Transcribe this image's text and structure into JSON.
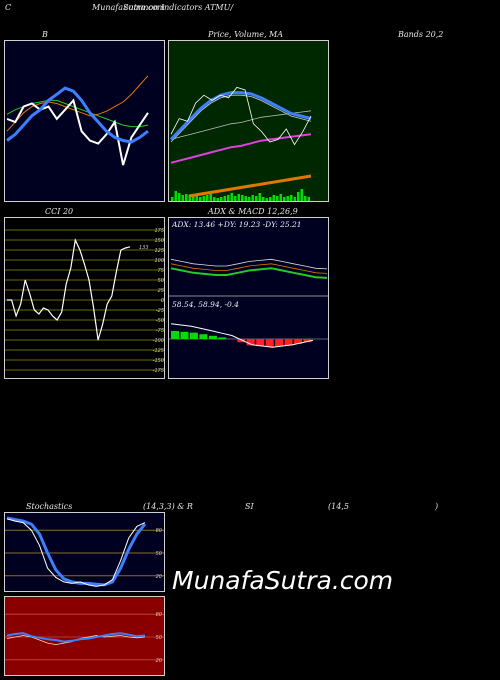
{
  "header": {
    "left_char": "C",
    "site_title": "MunafaSutra.com",
    "subtitle": "common Indicators ATMU/"
  },
  "labels": {
    "bb_title": "B",
    "price_title": "Price, Volume, MA",
    "bands_title": "Bands 20,2",
    "cci_title": "CCI 20",
    "adx_title": "ADX  & MACD 12,26,9",
    "stoch_title": "Stochastics",
    "stoch_params": "(14,3,3) & R",
    "rsi_title": "SI",
    "rsi_params": "(14,5",
    "rsi_close": ")",
    "watermark": "MunafaSutra.com"
  },
  "colors": {
    "background": "#000000",
    "bb_panel": "#000020",
    "price_panel": "#002800",
    "cci_panel": "#000000",
    "adx_panel": "#000020",
    "stoch_panel": "#000020",
    "rsi_panel": "#8a0000",
    "blue_line": "#3d7fff",
    "green_line": "#22cc22",
    "orange_line": "#e07800",
    "white_line": "#ffffff",
    "grid_olive": "#6b6b00"
  },
  "chart_data": [
    {
      "type": "line",
      "title": "B",
      "series": [
        {
          "values": [
            96,
            90,
            84,
            80,
            78,
            77,
            78,
            80,
            82,
            84,
            86,
            85,
            83,
            80,
            77,
            72,
            66,
            60
          ]
        },
        {
          "values": [
            55,
            58,
            60,
            62,
            63,
            64,
            64,
            62,
            60,
            58,
            56,
            54,
            52,
            50,
            48,
            47,
            47,
            48
          ]
        },
        {
          "values": [
            18,
            22,
            28,
            34,
            38,
            44,
            48,
            52,
            50,
            44,
            36,
            30,
            24,
            20,
            18,
            17,
            20,
            24
          ]
        },
        {
          "values": [
            52,
            50,
            60,
            62,
            58,
            60,
            52,
            58,
            64,
            44,
            38,
            36,
            42,
            50,
            22,
            40,
            48,
            56
          ]
        }
      ]
    },
    {
      "type": "line",
      "title": "Price, Volume, MA",
      "series": [
        {
          "values": [
            30,
            38,
            46,
            54,
            60,
            64,
            66,
            66,
            65,
            62,
            58,
            54,
            50,
            48,
            46
          ]
        },
        {
          "values": [
            22,
            24,
            26,
            28,
            30,
            32,
            34,
            35,
            37,
            39,
            40,
            41,
            42,
            43,
            44
          ]
        },
        {
          "values": [
            36,
            48,
            46,
            60,
            66,
            62,
            66,
            64,
            72,
            70,
            44,
            38,
            30,
            32,
            40,
            28,
            38,
            50
          ]
        }
      ],
      "volume": [
        4,
        10,
        8,
        6,
        7,
        6,
        5,
        5,
        4,
        5,
        6,
        7,
        4,
        3,
        4,
        5,
        6,
        8,
        5,
        7,
        6,
        5,
        4,
        6,
        5,
        8,
        4,
        3,
        4,
        6,
        5,
        7,
        4,
        5,
        6,
        4,
        9,
        12,
        5,
        4
      ]
    },
    {
      "type": "line",
      "title": "CCI 20",
      "ylim": [
        -175,
        175
      ],
      "yticks": [
        175,
        150,
        125,
        100,
        75,
        50,
        25,
        0,
        -25,
        -50,
        -75,
        -100,
        -125,
        -150,
        -175
      ],
      "current_label": "133",
      "values": [
        0,
        0,
        -40,
        -10,
        50,
        15,
        -25,
        -35,
        -20,
        -25,
        -40,
        -50,
        -30,
        40,
        80,
        150,
        125,
        90,
        50,
        -20,
        -100,
        -60,
        -10,
        10,
        70,
        125,
        130,
        133
      ]
    },
    {
      "type": "line",
      "title": "ADX & MACD 12,26,9",
      "annotation": "ADX: 13.46  +DY: 19.23 -DY: 25.21",
      "macd_annotation": "58.54,  58.94,  -0.4",
      "adx_values": [
        22,
        20,
        18,
        17,
        16,
        16,
        18,
        20,
        21,
        22,
        20,
        18,
        16,
        14,
        13.46
      ],
      "macd_values": [
        10,
        9,
        8,
        6,
        4,
        2,
        0,
        -4,
        -8,
        -9,
        -10,
        -9,
        -8,
        -6,
        -4
      ]
    },
    {
      "type": "line",
      "title": "Stochastics (14,3,3)",
      "ylim": [
        0,
        100
      ],
      "yticks": [
        80,
        50,
        20
      ],
      "k_values": [
        95,
        92,
        90,
        80,
        60,
        30,
        18,
        12,
        10,
        12,
        8,
        6,
        8,
        15,
        40,
        70,
        85,
        90
      ],
      "d_values": [
        96,
        94,
        92,
        88,
        75,
        50,
        28,
        16,
        12,
        10,
        10,
        9,
        8,
        12,
        30,
        55,
        75,
        88
      ]
    },
    {
      "type": "line",
      "title": "RSI (14,5)",
      "ylim": [
        0,
        100
      ],
      "yticks": [
        80,
        50,
        20
      ],
      "rsi_values": [
        52,
        54,
        55,
        51,
        49,
        47,
        46,
        44,
        45,
        47,
        48,
        50,
        52,
        54,
        55,
        53,
        51,
        52
      ],
      "mfi_values": [
        48,
        50,
        52,
        50,
        46,
        42,
        40,
        42,
        44,
        48,
        50,
        52,
        50,
        51,
        52,
        50,
        49,
        50
      ]
    }
  ]
}
